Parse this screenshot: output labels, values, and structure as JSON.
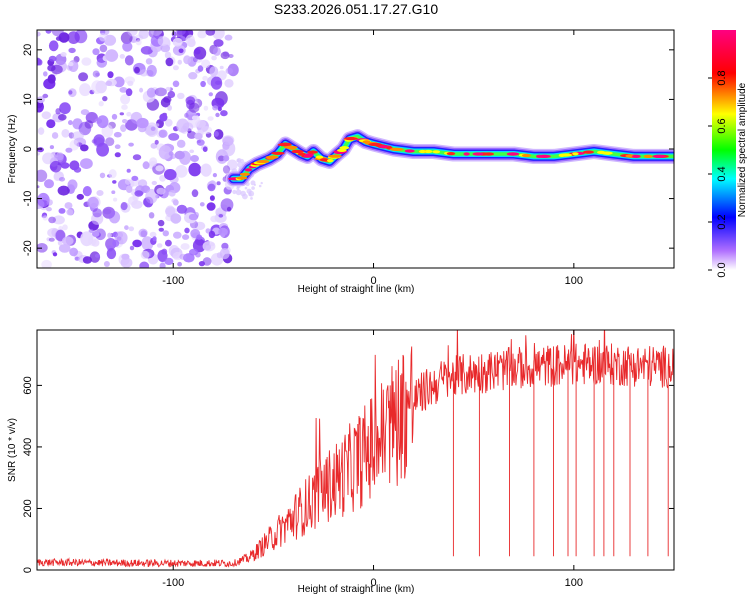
{
  "title": "S233.2026.051.17.27.G10",
  "chart_data": [
    {
      "type": "heatmap",
      "name": "spectrogram",
      "xlabel": "Height of straight line (km)",
      "ylabel": "Frequency (Hz)",
      "xlim": [
        -168,
        150
      ],
      "ylim": [
        -24,
        24
      ],
      "xticks": [
        -100,
        0,
        100
      ],
      "yticks": [
        -20,
        -10,
        0,
        10,
        20
      ],
      "colorbar": {
        "label": "Normalized spectral amplitude",
        "ticks": [
          "0.0",
          "0.2",
          "0.4",
          "0.6",
          "0.8"
        ],
        "range": [
          0,
          1
        ],
        "colors": [
          "#ffffff",
          "#9b30ff",
          "#0000ff",
          "#00ffff",
          "#00ff00",
          "#ffff00",
          "#ff0000",
          "#ff0080"
        ]
      },
      "noise_region_x": [
        -168,
        -70
      ],
      "ridge": [
        {
          "x": -70,
          "f": -6
        },
        {
          "x": -66,
          "f": -6
        },
        {
          "x": -62,
          "f": -4
        },
        {
          "x": -58,
          "f": -3
        },
        {
          "x": -52,
          "f": -2
        },
        {
          "x": -48,
          "f": -1
        },
        {
          "x": -44,
          "f": 1
        },
        {
          "x": -40,
          "f": 0
        },
        {
          "x": -36,
          "f": -1
        },
        {
          "x": -33,
          "f": -1.5
        },
        {
          "x": -30,
          "f": -0.5
        },
        {
          "x": -26,
          "f": -2
        },
        {
          "x": -22,
          "f": -2.5
        },
        {
          "x": -18,
          "f": -1
        },
        {
          "x": -15,
          "f": 0
        },
        {
          "x": -12,
          "f": 2
        },
        {
          "x": -8,
          "f": 2.5
        },
        {
          "x": -4,
          "f": 1.5
        },
        {
          "x": 0,
          "f": 1
        },
        {
          "x": 5,
          "f": 0.5
        },
        {
          "x": 10,
          "f": 0
        },
        {
          "x": 20,
          "f": -0.5
        },
        {
          "x": 30,
          "f": -0.5
        },
        {
          "x": 40,
          "f": -1
        },
        {
          "x": 55,
          "f": -1
        },
        {
          "x": 70,
          "f": -1
        },
        {
          "x": 80,
          "f": -1.5
        },
        {
          "x": 90,
          "f": -1.5
        },
        {
          "x": 100,
          "f": -1
        },
        {
          "x": 110,
          "f": -0.5
        },
        {
          "x": 120,
          "f": -1
        },
        {
          "x": 130,
          "f": -1.5
        },
        {
          "x": 140,
          "f": -1.5
        },
        {
          "x": 150,
          "f": -1.5
        }
      ]
    },
    {
      "type": "line",
      "name": "snr",
      "xlabel": "Height of straight line (km)",
      "ylabel": "SNR (10 * v/v)",
      "xlim": [
        -168,
        150
      ],
      "ylim": [
        0,
        780
      ],
      "xticks": [
        -100,
        0,
        100
      ],
      "yticks": [
        0,
        200,
        400,
        600
      ],
      "color": "#e8292b",
      "envelope": [
        {
          "x": -168,
          "y": 25
        },
        {
          "x": -110,
          "y": 22
        },
        {
          "x": -70,
          "y": 22
        },
        {
          "x": -62,
          "y": 40
        },
        {
          "x": -55,
          "y": 80
        },
        {
          "x": -45,
          "y": 140
        },
        {
          "x": -35,
          "y": 200
        },
        {
          "x": -25,
          "y": 260
        },
        {
          "x": -15,
          "y": 310
        },
        {
          "x": -5,
          "y": 370
        },
        {
          "x": 5,
          "y": 440
        },
        {
          "x": 15,
          "y": 520
        },
        {
          "x": 25,
          "y": 580
        },
        {
          "x": 35,
          "y": 620
        },
        {
          "x": 50,
          "y": 640
        },
        {
          "x": 70,
          "y": 655
        },
        {
          "x": 90,
          "y": 665
        },
        {
          "x": 110,
          "y": 670
        },
        {
          "x": 130,
          "y": 665
        },
        {
          "x": 150,
          "y": 660
        }
      ],
      "dropouts": [
        40,
        53,
        68,
        80,
        90,
        97,
        101,
        110,
        115,
        120,
        128,
        137,
        147
      ]
    }
  ]
}
